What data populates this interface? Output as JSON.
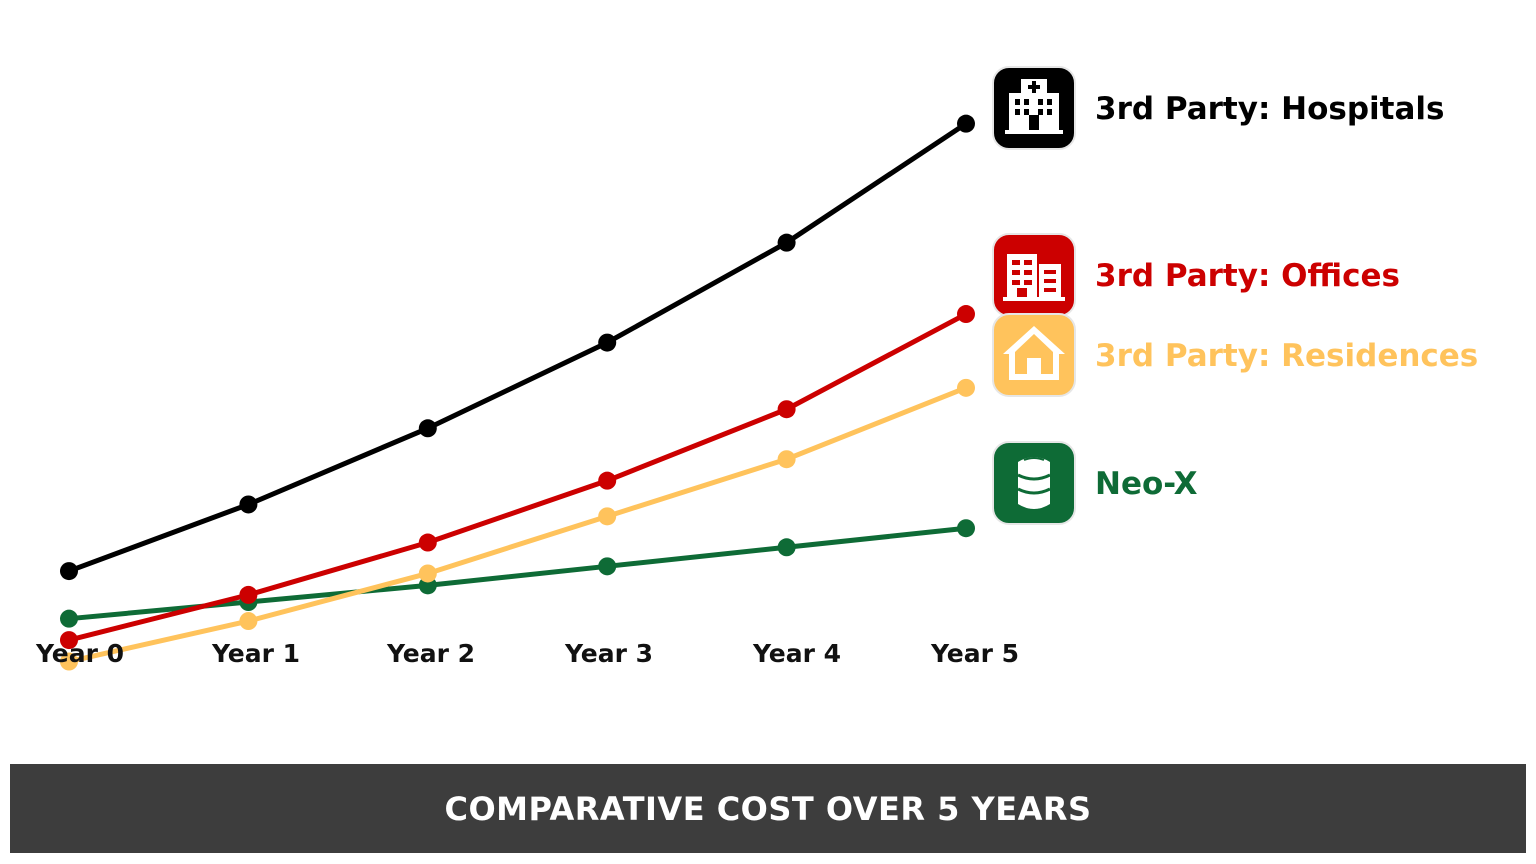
{
  "chart_data": {
    "type": "line",
    "title": "COMPARATIVE COST OVER 5 YEARS",
    "categories": [
      "Year 0",
      "Year 1",
      "Year 2",
      "Year 3",
      "Year 4",
      "Year 5"
    ],
    "ylim": [
      0,
      100
    ],
    "grid": false,
    "legend": "right, at line ends",
    "series": [
      {
        "name": "3rd Party: Hospitals",
        "color": "#000000",
        "icon": "hospital-icon",
        "values": [
          17,
          31,
          47,
          65,
          86,
          111
        ]
      },
      {
        "name": "3rd Party: Offices",
        "color": "#cc0000",
        "icon": "office-building-icon",
        "values": [
          2.5,
          12,
          23,
          36,
          51,
          71
        ]
      },
      {
        "name": "3rd Party: Residences",
        "color": "#ffc35c",
        "icon": "house-icon",
        "values": [
          -2,
          6.5,
          16.5,
          28.5,
          40.5,
          55.5
        ]
      },
      {
        "name": "Neo-X",
        "color": "#0e6b36",
        "icon": "barrel-icon",
        "values": [
          7,
          10.5,
          14,
          18,
          22,
          26
        ]
      }
    ]
  }
}
